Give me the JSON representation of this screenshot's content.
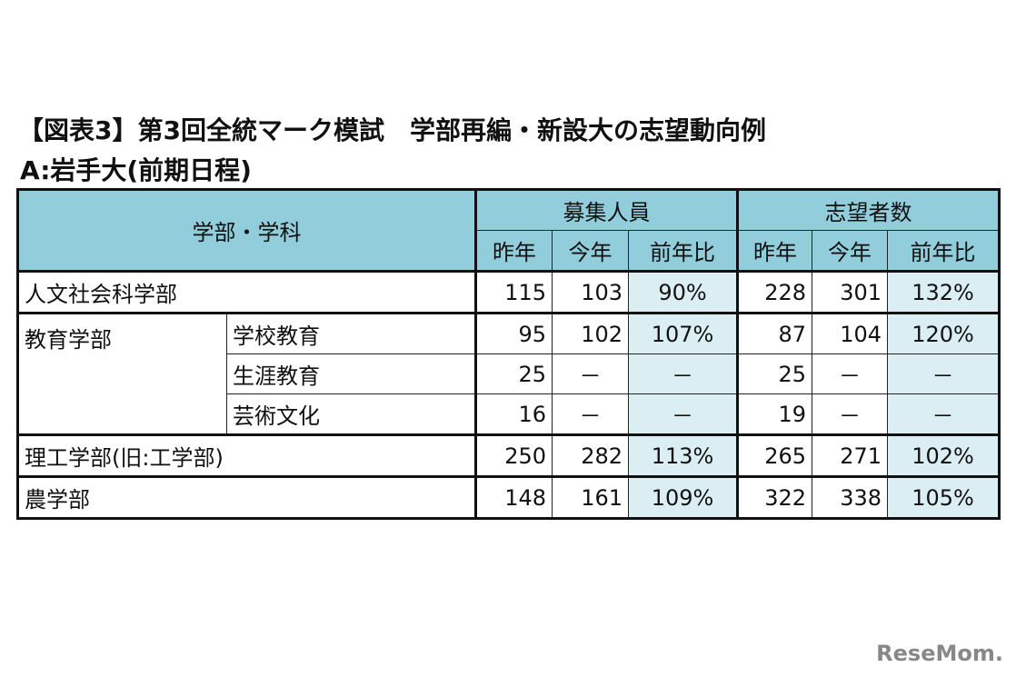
{
  "title": "【図表3】第3回全統マーク模試　学部再編・新設大の志望動向例",
  "subtitle": "A:岩手大(前期日程)",
  "table": {
    "header_dept": "学部・学科",
    "group1": "募集人員",
    "group2": "志望者数",
    "sub": [
      "昨年",
      "今年",
      "前年比",
      "昨年",
      "今年",
      "前年比"
    ],
    "rows": [
      {
        "dept": "人文社会科学部",
        "course": "",
        "v": [
          "115",
          "103",
          "90%",
          "228",
          "301",
          "132%"
        ]
      },
      {
        "dept": "教育学部",
        "course": "学校教育",
        "v": [
          "95",
          "102",
          "107%",
          "87",
          "104",
          "120%"
        ]
      },
      {
        "dept": "",
        "course": "生涯教育",
        "v": [
          "25",
          "－",
          "－",
          "25",
          "－",
          "－"
        ]
      },
      {
        "dept": "",
        "course": "芸術文化",
        "v": [
          "16",
          "－",
          "－",
          "19",
          "－",
          "－"
        ]
      },
      {
        "dept": "理工学部(旧:工学部)",
        "course": "",
        "v": [
          "250",
          "282",
          "113%",
          "265",
          "271",
          "102%"
        ]
      },
      {
        "dept": "農学部",
        "course": "",
        "v": [
          "148",
          "161",
          "109%",
          "322",
          "338",
          "105%"
        ]
      }
    ]
  },
  "logo": "ReseMom"
}
